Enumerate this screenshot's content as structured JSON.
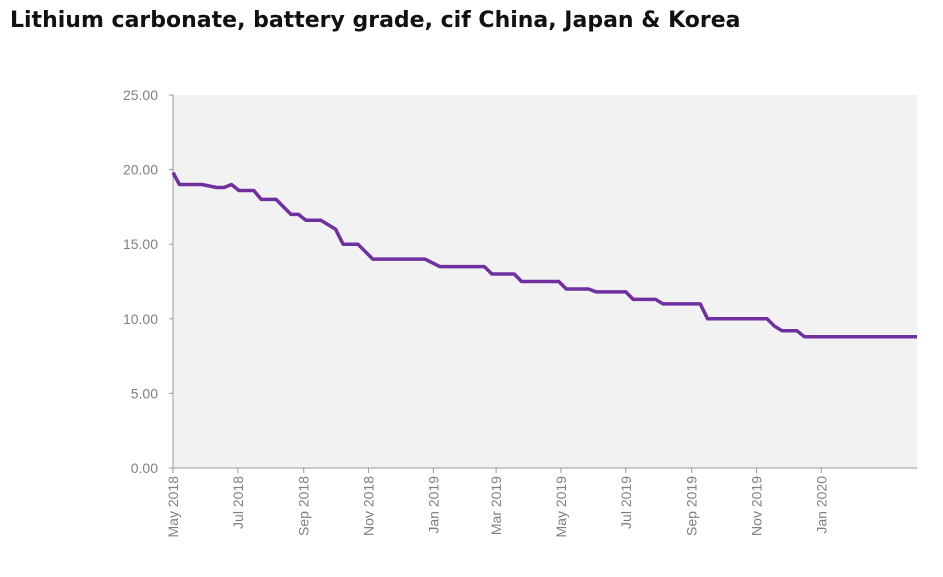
{
  "chart_data": {
    "type": "line",
    "title": "Lithium carbonate, battery grade, cif China, Japan & Korea",
    "xlabel": "",
    "ylabel": "",
    "ylim": [
      0,
      25
    ],
    "y_ticks": [
      "0.00",
      "5.00",
      "10.00",
      "15.00",
      "20.00",
      "25.00"
    ],
    "x_range": [
      "2018-05-01",
      "2020-03-31"
    ],
    "x_ticks": [
      {
        "label": "May 2018",
        "date": "2018-05-01"
      },
      {
        "label": "Jul 2018",
        "date": "2018-07-01"
      },
      {
        "label": "Sep 2018",
        "date": "2018-09-01"
      },
      {
        "label": "Nov 2018",
        "date": "2018-11-01"
      },
      {
        "label": "Jan 2019",
        "date": "2019-01-01"
      },
      {
        "label": "Mar 2019",
        "date": "2019-03-01"
      },
      {
        "label": "May 2019",
        "date": "2019-05-01"
      },
      {
        "label": "Jul 2019",
        "date": "2019-07-01"
      },
      {
        "label": "Sep 2019",
        "date": "2019-09-01"
      },
      {
        "label": "Nov 2019",
        "date": "2019-11-01"
      },
      {
        "label": "Jan 2020",
        "date": "2020-01-01"
      }
    ],
    "grid": false,
    "legend": "none",
    "line_color": "#7030a0",
    "plot_background": "#f2f2f2",
    "series": [
      {
        "x": [
          "2018-05-01",
          "2018-05-07",
          "2018-05-28",
          "2018-06-11",
          "2018-06-18",
          "2018-06-25",
          "2018-07-02",
          "2018-07-16",
          "2018-07-23",
          "2018-08-06",
          "2018-08-13",
          "2018-08-20",
          "2018-08-27",
          "2018-09-03",
          "2018-09-10",
          "2018-09-17",
          "2018-09-24",
          "2018-10-01",
          "2018-10-08",
          "2018-10-15",
          "2018-10-22",
          "2018-10-29",
          "2018-11-05",
          "2018-11-12",
          "2018-11-26",
          "2018-12-24",
          "2019-01-07",
          "2019-01-21",
          "2019-02-18",
          "2019-02-25",
          "2019-03-04",
          "2019-03-18",
          "2019-03-25",
          "2019-04-22",
          "2019-04-29",
          "2019-05-06",
          "2019-05-27",
          "2019-06-03",
          "2019-06-10",
          "2019-07-01",
          "2019-07-08",
          "2019-07-29",
          "2019-08-05",
          "2019-09-02",
          "2019-09-09",
          "2019-09-16",
          "2019-10-07",
          "2019-11-11",
          "2019-11-18",
          "2019-11-25",
          "2019-12-09",
          "2019-12-16",
          "2019-12-30",
          "2020-03-31"
        ],
        "values": [
          19.8,
          19.0,
          19.0,
          18.8,
          18.8,
          19.0,
          18.6,
          18.6,
          18.0,
          18.0,
          17.5,
          17.0,
          17.0,
          16.6,
          16.6,
          16.6,
          16.3,
          16.0,
          15.0,
          15.0,
          15.0,
          14.5,
          14.0,
          14.0,
          14.0,
          14.0,
          13.5,
          13.5,
          13.5,
          13.0,
          13.0,
          13.0,
          12.5,
          12.5,
          12.5,
          12.0,
          12.0,
          11.8,
          11.8,
          11.8,
          11.3,
          11.3,
          11.0,
          11.0,
          11.0,
          10.0,
          10.0,
          10.0,
          9.5,
          9.2,
          9.2,
          8.8,
          8.8,
          8.8
        ]
      }
    ]
  }
}
